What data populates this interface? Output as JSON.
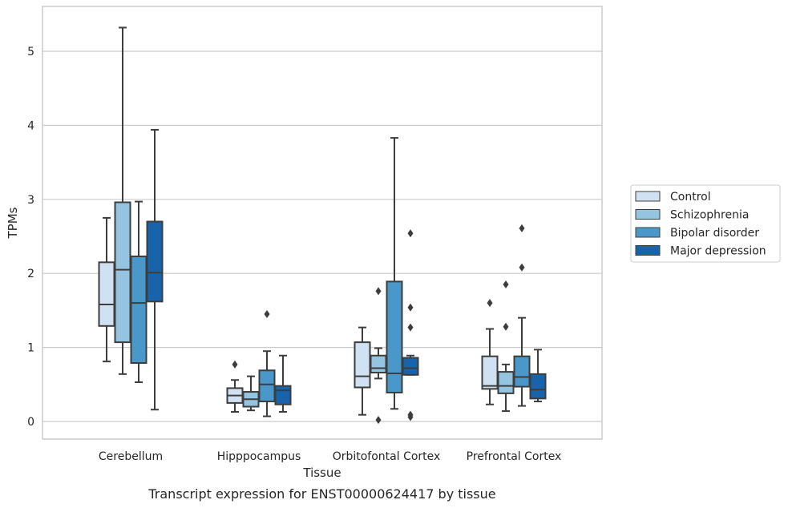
{
  "caption": "Transcript expression for ENST00000624417 by tissue",
  "chart_data": {
    "type": "box",
    "xlabel": "Tissue",
    "ylabel": "TPMs",
    "ylim": [
      -0.23,
      5.6
    ],
    "yticks": [
      0,
      1,
      2,
      3,
      4,
      5
    ],
    "grid": true,
    "legend_position": "right",
    "categories": [
      "Cerebellum",
      "Hipppocampus",
      "Orbitofontal Cortex",
      "Prefrontal Cortex"
    ],
    "series": [
      {
        "name": "Control",
        "color": "#d0e1f2",
        "boxes": [
          {
            "whisker_low": 0.81,
            "q1": 1.29,
            "median": 1.58,
            "q3": 2.15,
            "whisker_high": 2.75,
            "outliers": []
          },
          {
            "whisker_low": 0.13,
            "q1": 0.25,
            "median": 0.35,
            "q3": 0.45,
            "whisker_high": 0.56,
            "outliers": [
              0.77
            ]
          },
          {
            "whisker_low": 0.09,
            "q1": 0.46,
            "median": 0.61,
            "q3": 1.07,
            "whisker_high": 1.27,
            "outliers": []
          },
          {
            "whisker_low": 0.23,
            "q1": 0.44,
            "median": 0.48,
            "q3": 0.88,
            "whisker_high": 1.25,
            "outliers": [
              1.6
            ]
          }
        ]
      },
      {
        "name": "Schizophrenia",
        "color": "#94c4df",
        "boxes": [
          {
            "whisker_low": 0.64,
            "q1": 1.07,
            "median": 2.05,
            "q3": 2.96,
            "whisker_high": 5.32,
            "outliers": []
          },
          {
            "whisker_low": 0.15,
            "q1": 0.2,
            "median": 0.3,
            "q3": 0.4,
            "whisker_high": 0.61,
            "outliers": []
          },
          {
            "whisker_low": 0.58,
            "q1": 0.66,
            "median": 0.72,
            "q3": 0.89,
            "whisker_high": 0.99,
            "outliers": [
              0.02,
              1.76
            ]
          },
          {
            "whisker_low": 0.14,
            "q1": 0.38,
            "median": 0.48,
            "q3": 0.67,
            "whisker_high": 0.77,
            "outliers": [
              1.28,
              1.85
            ]
          }
        ]
      },
      {
        "name": "Bipolar disorder",
        "color": "#4a98c9",
        "boxes": [
          {
            "whisker_low": 0.53,
            "q1": 0.79,
            "median": 1.6,
            "q3": 2.23,
            "whisker_high": 2.97,
            "outliers": []
          },
          {
            "whisker_low": 0.07,
            "q1": 0.27,
            "median": 0.5,
            "q3": 0.69,
            "whisker_high": 0.95,
            "outliers": [
              1.45
            ]
          },
          {
            "whisker_low": 0.17,
            "q1": 0.39,
            "median": 0.65,
            "q3": 1.89,
            "whisker_high": 3.83,
            "outliers": []
          },
          {
            "whisker_low": 0.21,
            "q1": 0.47,
            "median": 0.6,
            "q3": 0.88,
            "whisker_high": 1.4,
            "outliers": [
              2.08,
              2.61
            ]
          }
        ]
      },
      {
        "name": "Major depression",
        "color": "#1764ab",
        "boxes": [
          {
            "whisker_low": 0.16,
            "q1": 1.62,
            "median": 2.01,
            "q3": 2.7,
            "whisker_high": 3.94,
            "outliers": []
          },
          {
            "whisker_low": 0.13,
            "q1": 0.23,
            "median": 0.42,
            "q3": 0.48,
            "whisker_high": 0.89,
            "outliers": []
          },
          {
            "whisker_low": 0.63,
            "q1": 0.63,
            "median": 0.72,
            "q3": 0.86,
            "whisker_high": 0.89,
            "outliers": [
              0.06,
              0.09,
              1.27,
              1.54,
              2.54
            ]
          },
          {
            "whisker_low": 0.27,
            "q1": 0.31,
            "median": 0.43,
            "q3": 0.64,
            "whisker_high": 0.97,
            "outliers": []
          }
        ]
      }
    ]
  }
}
